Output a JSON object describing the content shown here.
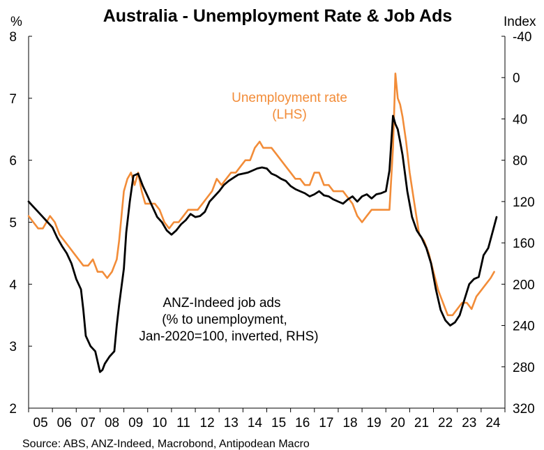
{
  "chart_data": {
    "type": "line",
    "title": "Australia - Unemployment Rate & Job Ads",
    "source": "Source: ABS, ANZ-Indeed, Macrobond, Antipodean Macro",
    "y_left": {
      "unit": "%",
      "min": 2,
      "max": 8,
      "ticks": [
        "2",
        "3",
        "4",
        "5",
        "6",
        "7",
        "8"
      ]
    },
    "y_right": {
      "unit": "Index",
      "min": -40,
      "max": 320,
      "inverted": true,
      "ticks": [
        "-40",
        "0",
        "40",
        "80",
        "120",
        "160",
        "200",
        "240",
        "280",
        "320"
      ]
    },
    "x_axis": {
      "start": 2005,
      "end": 2025,
      "ticks": [
        "05",
        "06",
        "07",
        "08",
        "09",
        "10",
        "11",
        "12",
        "13",
        "14",
        "15",
        "16",
        "17",
        "18",
        "19",
        "20",
        "21",
        "22",
        "23",
        "24"
      ]
    },
    "grid": false,
    "annotations": {
      "unemployment_line1": "Unemployment rate",
      "unemployment_line2": "(LHS)",
      "jobads_line1": "ANZ-Indeed job ads",
      "jobads_line2": "(% to unemployment,",
      "jobads_line3": "Jan-2020=100, inverted, RHS)"
    },
    "series": [
      {
        "axis": "left",
        "color": "#F28C38",
        "x": [
          2005.0,
          2005.2,
          2005.4,
          2005.6,
          2005.9,
          2006.1,
          2006.3,
          2006.5,
          2006.7,
          2006.9,
          2007.1,
          2007.3,
          2007.5,
          2007.7,
          2007.9,
          2008.1,
          2008.3,
          2008.5,
          2008.7,
          2008.8,
          2008.9,
          2009.0,
          2009.15,
          2009.3,
          2009.45,
          2009.6,
          2009.75,
          2009.9,
          2010.1,
          2010.3,
          2010.5,
          2010.7,
          2010.9,
          2011.1,
          2011.3,
          2011.5,
          2011.7,
          2011.9,
          2012.1,
          2012.3,
          2012.5,
          2012.7,
          2012.9,
          2013.1,
          2013.3,
          2013.5,
          2013.7,
          2013.9,
          2014.1,
          2014.3,
          2014.5,
          2014.7,
          2014.85,
          2015.0,
          2015.2,
          2015.4,
          2015.6,
          2015.8,
          2016.0,
          2016.2,
          2016.4,
          2016.6,
          2016.8,
          2017.0,
          2017.2,
          2017.4,
          2017.6,
          2017.8,
          2018.0,
          2018.2,
          2018.4,
          2018.6,
          2018.8,
          2019.0,
          2019.2,
          2019.4,
          2019.6,
          2019.8,
          2020.0,
          2020.15,
          2020.3,
          2020.4,
          2020.5,
          2020.6,
          2020.7,
          2020.85,
          2021.0,
          2021.2,
          2021.4,
          2021.6,
          2021.8,
          2022.0,
          2022.2,
          2022.4,
          2022.6,
          2022.8,
          2023.0,
          2023.2,
          2023.4,
          2023.6,
          2023.8,
          2024.0,
          2024.2,
          2024.4,
          2024.55
        ],
        "values": [
          5.1,
          5.0,
          4.9,
          4.9,
          5.1,
          5.0,
          4.8,
          4.7,
          4.6,
          4.5,
          4.4,
          4.3,
          4.3,
          4.4,
          4.2,
          4.2,
          4.1,
          4.2,
          4.4,
          4.7,
          5.1,
          5.5,
          5.7,
          5.8,
          5.6,
          5.8,
          5.5,
          5.3,
          5.3,
          5.3,
          5.2,
          5.0,
          4.9,
          5.0,
          5.0,
          5.1,
          5.2,
          5.2,
          5.2,
          5.3,
          5.4,
          5.5,
          5.7,
          5.6,
          5.7,
          5.8,
          5.8,
          5.9,
          6.0,
          6.0,
          6.2,
          6.3,
          6.2,
          6.2,
          6.2,
          6.1,
          6.0,
          5.9,
          5.8,
          5.7,
          5.7,
          5.6,
          5.6,
          5.8,
          5.8,
          5.6,
          5.6,
          5.5,
          5.5,
          5.5,
          5.4,
          5.3,
          5.1,
          5.0,
          5.1,
          5.2,
          5.2,
          5.2,
          5.2,
          5.2,
          6.2,
          7.4,
          7.0,
          6.9,
          6.7,
          6.3,
          5.8,
          5.3,
          4.8,
          4.7,
          4.5,
          4.2,
          3.9,
          3.7,
          3.5,
          3.5,
          3.6,
          3.7,
          3.7,
          3.6,
          3.8,
          3.9,
          4.0,
          4.1,
          4.2
        ]
      },
      {
        "axis": "right",
        "color": "#000000",
        "x": [
          2005.0,
          2005.2,
          2005.4,
          2005.6,
          2005.8,
          2006.0,
          2006.2,
          2006.4,
          2006.6,
          2006.8,
          2007.0,
          2007.2,
          2007.3,
          2007.4,
          2007.6,
          2007.8,
          2008.0,
          2008.1,
          2008.2,
          2008.4,
          2008.6,
          2008.7,
          2008.8,
          2009.0,
          2009.1,
          2009.25,
          2009.4,
          2009.6,
          2009.8,
          2010.0,
          2010.2,
          2010.4,
          2010.6,
          2010.8,
          2011.0,
          2011.2,
          2011.4,
          2011.6,
          2011.8,
          2012.0,
          2012.2,
          2012.4,
          2012.6,
          2012.8,
          2013.0,
          2013.2,
          2013.4,
          2013.6,
          2013.8,
          2014.0,
          2014.2,
          2014.4,
          2014.6,
          2014.8,
          2015.0,
          2015.2,
          2015.4,
          2015.6,
          2015.8,
          2016.0,
          2016.2,
          2016.4,
          2016.6,
          2016.8,
          2017.0,
          2017.2,
          2017.4,
          2017.6,
          2017.8,
          2018.0,
          2018.2,
          2018.4,
          2018.6,
          2018.8,
          2019.0,
          2019.2,
          2019.4,
          2019.6,
          2019.8,
          2020.0,
          2020.15,
          2020.3,
          2020.4,
          2020.5,
          2020.6,
          2020.7,
          2020.9,
          2021.1,
          2021.3,
          2021.5,
          2021.7,
          2021.9,
          2022.1,
          2022.3,
          2022.5,
          2022.7,
          2022.9,
          2023.1,
          2023.3,
          2023.5,
          2023.7,
          2023.9,
          2024.1,
          2024.3,
          2024.5,
          2024.65
        ],
        "values": [
          120,
          125,
          130,
          135,
          140,
          145,
          155,
          163,
          170,
          180,
          195,
          205,
          225,
          250,
          260,
          265,
          285,
          283,
          277,
          270,
          265,
          240,
          220,
          185,
          150,
          120,
          95,
          93,
          105,
          115,
          125,
          135,
          140,
          148,
          152,
          148,
          142,
          138,
          132,
          135,
          134,
          130,
          120,
          115,
          110,
          104,
          100,
          97,
          94,
          93,
          92,
          90,
          88,
          87,
          88,
          93,
          95,
          98,
          100,
          105,
          108,
          110,
          112,
          115,
          113,
          110,
          114,
          115,
          118,
          120,
          122,
          118,
          115,
          120,
          115,
          113,
          117,
          113,
          112,
          110,
          90,
          37,
          45,
          50,
          62,
          75,
          110,
          135,
          148,
          155,
          165,
          180,
          205,
          225,
          235,
          240,
          237,
          230,
          215,
          200,
          195,
          193,
          172,
          165,
          148,
          135
        ]
      }
    ]
  }
}
